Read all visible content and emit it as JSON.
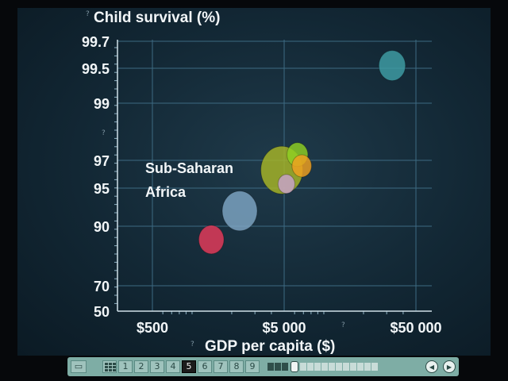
{
  "chart_data": {
    "type": "bubble",
    "title": "Child survival (%)",
    "xlabel": "GDP per capita ($)",
    "ylabel": "Child survival (%)",
    "x_scale": "log",
    "x_ticks": [
      {
        "value": 500,
        "label": "$500"
      },
      {
        "value": 5000,
        "label": "$5 000"
      },
      {
        "value": 50000,
        "label": "$50 000"
      }
    ],
    "y_ticks": [
      {
        "label": "99.7"
      },
      {
        "label": "99.5"
      },
      {
        "label": "99"
      },
      {
        "label": "97"
      },
      {
        "label": "95"
      },
      {
        "label": "90"
      },
      {
        "label": "70"
      },
      {
        "label": "50"
      }
    ],
    "grid": true,
    "annotation": "Sub-Saharan Africa",
    "annotation_color": "#e8345a",
    "bubbles": [
      {
        "x": 1400,
        "y": 85.5,
        "size": 18,
        "color": "#e83a5a"
      },
      {
        "x": 2300,
        "y": 92.0,
        "size": 25,
        "color": "#7fa6c4"
      },
      {
        "x": 4800,
        "y": 96.3,
        "size": 30,
        "color": "#a8b626"
      },
      {
        "x": 5200,
        "y": 95.3,
        "size": 12,
        "color": "#c8a2cc"
      },
      {
        "x": 6300,
        "y": 97.2,
        "size": 15,
        "color": "#8fd022"
      },
      {
        "x": 6800,
        "y": 96.6,
        "size": 14,
        "color": "#f0a020"
      },
      {
        "x": 33000,
        "y": 99.52,
        "size": 19,
        "color": "#3f9fa6"
      }
    ]
  },
  "player": {
    "slides": [
      "1",
      "2",
      "3",
      "4",
      "5",
      "6",
      "7",
      "8",
      "9"
    ],
    "active_slide": "5",
    "progress_segments": 14,
    "progress_filled": 3
  }
}
